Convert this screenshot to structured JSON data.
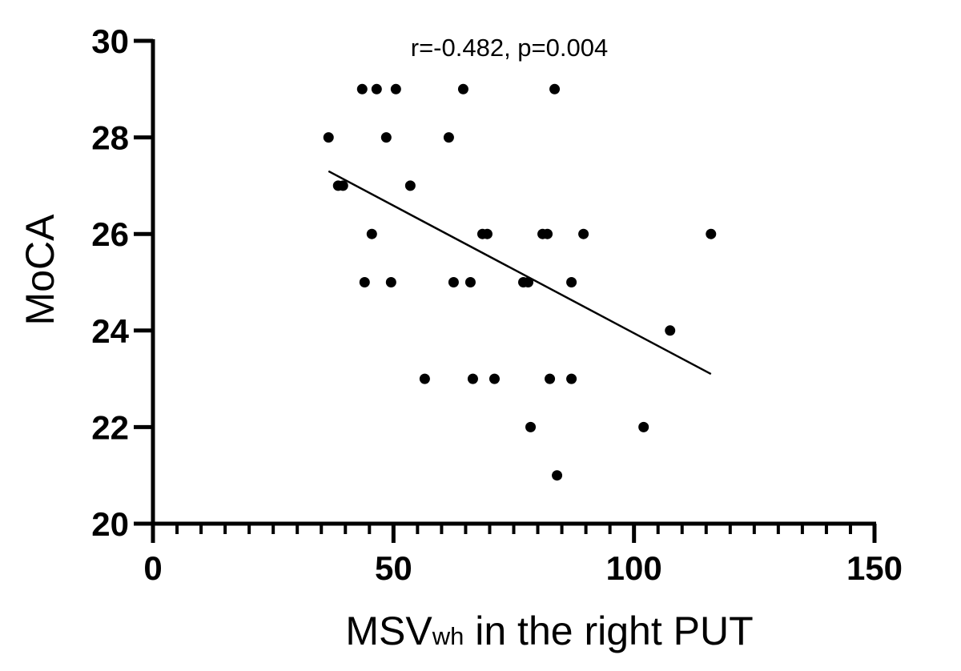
{
  "chart_data": {
    "type": "scatter",
    "title": "",
    "annotation": "r=-0.482, p=0.004",
    "xlabel": {
      "main": "MSV",
      "subscript": "wh",
      "rest": " in the right PUT"
    },
    "ylabel": "MoCA",
    "xlim": [
      0,
      150
    ],
    "ylim": [
      20,
      30
    ],
    "xticks": [
      0,
      50,
      100,
      150
    ],
    "xtick_labels": [
      "0",
      "50",
      "100",
      "150"
    ],
    "x_minor_step": 5,
    "yticks": [
      20,
      22,
      24,
      26,
      28,
      30
    ],
    "ytick_labels": [
      "20",
      "22",
      "24",
      "26",
      "28",
      "30"
    ],
    "grid": false,
    "points": [
      {
        "x": 36.5,
        "y": 28
      },
      {
        "x": 38.5,
        "y": 27
      },
      {
        "x": 39.5,
        "y": 27
      },
      {
        "x": 43.5,
        "y": 29
      },
      {
        "x": 46.5,
        "y": 29
      },
      {
        "x": 50.5,
        "y": 29
      },
      {
        "x": 48.5,
        "y": 28
      },
      {
        "x": 45.5,
        "y": 26
      },
      {
        "x": 44,
        "y": 25
      },
      {
        "x": 49.5,
        "y": 25
      },
      {
        "x": 53.5,
        "y": 27
      },
      {
        "x": 56.5,
        "y": 23
      },
      {
        "x": 61.5,
        "y": 28
      },
      {
        "x": 62.5,
        "y": 25
      },
      {
        "x": 64.5,
        "y": 29
      },
      {
        "x": 66,
        "y": 25
      },
      {
        "x": 66.5,
        "y": 23
      },
      {
        "x": 68.5,
        "y": 26
      },
      {
        "x": 69.5,
        "y": 26
      },
      {
        "x": 71,
        "y": 23
      },
      {
        "x": 77,
        "y": 25
      },
      {
        "x": 78,
        "y": 25
      },
      {
        "x": 78.5,
        "y": 22
      },
      {
        "x": 81,
        "y": 26
      },
      {
        "x": 82,
        "y": 26
      },
      {
        "x": 82.5,
        "y": 23
      },
      {
        "x": 83.5,
        "y": 29
      },
      {
        "x": 84,
        "y": 21
      },
      {
        "x": 87,
        "y": 25
      },
      {
        "x": 87,
        "y": 23
      },
      {
        "x": 89.5,
        "y": 26
      },
      {
        "x": 102,
        "y": 22
      },
      {
        "x": 107.5,
        "y": 24
      },
      {
        "x": 116,
        "y": 26
      }
    ],
    "fit_line": {
      "x": [
        36.5,
        116
      ],
      "y": [
        27.3,
        23.1
      ]
    },
    "colors": {
      "points": "#000000",
      "axes": "#000000",
      "line": "#000000"
    }
  }
}
